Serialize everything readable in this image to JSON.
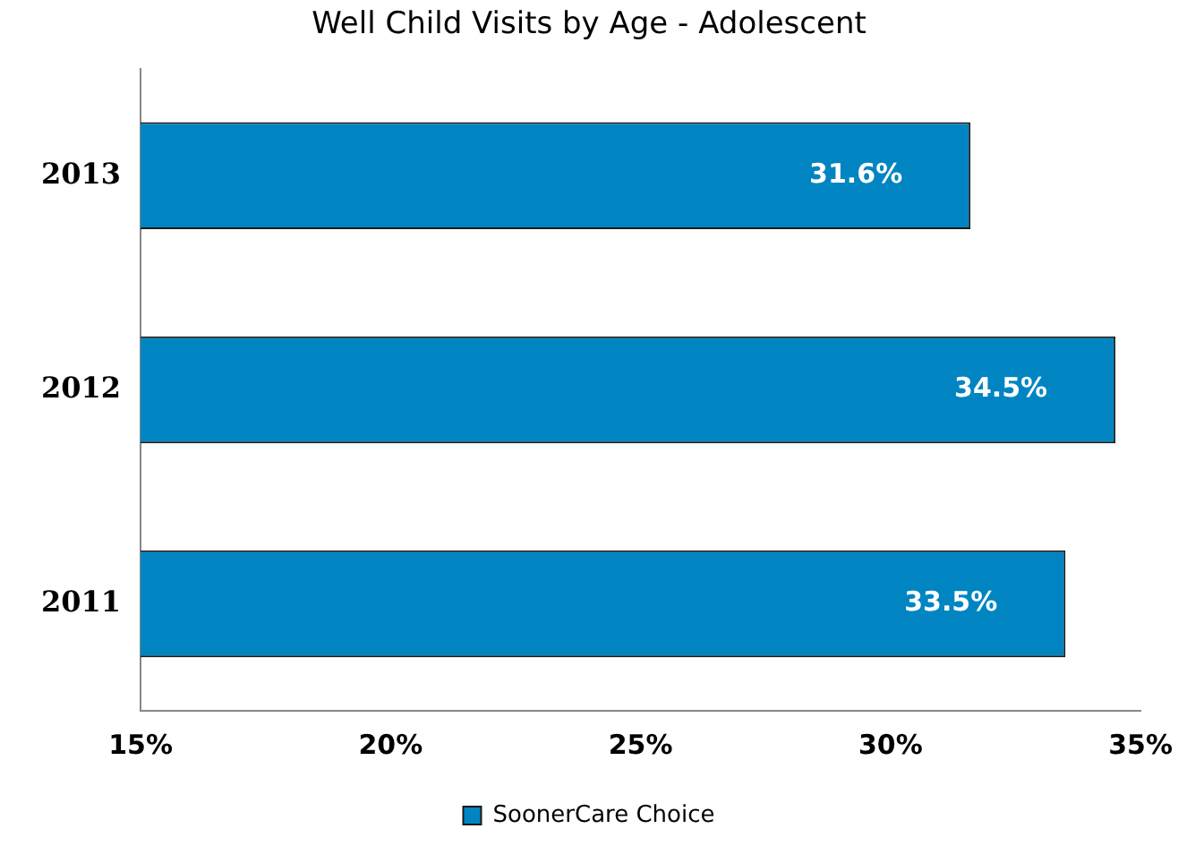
{
  "chart_data": {
    "type": "bar",
    "orientation": "horizontal",
    "title": "Well Child Visits by Age - Adolescent",
    "categories": [
      "2013",
      "2012",
      "2011"
    ],
    "series": [
      {
        "name": "SoonerCare Choice",
        "color": "#0085c2",
        "values": [
          31.6,
          34.5,
          33.5
        ],
        "value_labels": [
          "31.6%",
          "34.5%",
          "33.5%"
        ]
      }
    ],
    "xlim": [
      15,
      35
    ],
    "xticks": [
      {
        "value": 15,
        "label": "15%"
      },
      {
        "value": 20,
        "label": "20%"
      },
      {
        "value": 25,
        "label": "25%"
      },
      {
        "value": 30,
        "label": "30%"
      },
      {
        "value": 35,
        "label": "35%"
      }
    ],
    "grid": false,
    "legend": "bottom"
  }
}
